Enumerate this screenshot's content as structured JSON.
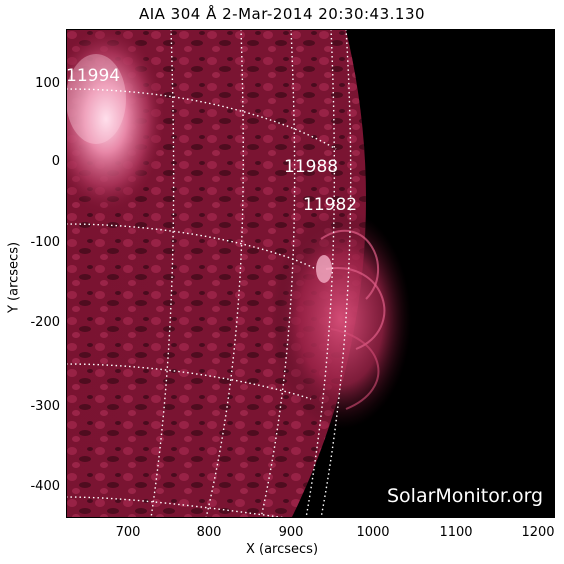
{
  "title": "AIA 304 Å  2-Mar-2014 20:30:43.130",
  "axes": {
    "x_label": "X (arcsecs)",
    "y_label": "Y (arcsecs)",
    "x_ticks": [
      "700",
      "800",
      "900",
      "1000",
      "1100",
      "1200"
    ],
    "y_ticks": [
      "100",
      "0",
      "-100",
      "-200",
      "-300",
      "-400"
    ]
  },
  "active_regions": [
    {
      "label": "11994"
    },
    {
      "label": "11988"
    },
    {
      "label": "11982"
    }
  ],
  "credit": "SolarMonitor.org",
  "colors": {
    "background": "#000000",
    "solar_disk": "#8a1a3a",
    "bright": "#ffd6e6",
    "grid": "#ffffff",
    "frame": "#ffffff"
  }
}
